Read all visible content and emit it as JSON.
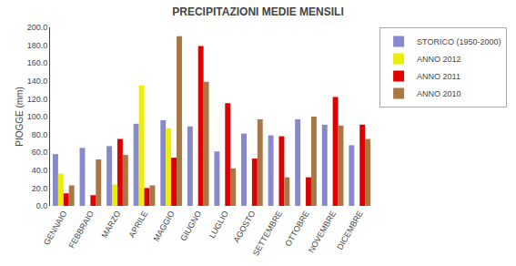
{
  "chart_data": {
    "type": "bar",
    "title": "PRECIPITAZIONI MEDIE MENSILI",
    "ylabel": "PIOGGE (mm)",
    "categories": [
      "GENNAIO",
      "FEBBRAIO",
      "MARZO",
      "APRILE",
      "MAGGIO",
      "GIUGNO",
      "LUGLIO",
      "AGOSTO",
      "SETTEMBRE",
      "OTTOBRE",
      "NOVEMBRE",
      "DICEMBRE"
    ],
    "series": [
      {
        "name": "STORICO (1950-2000)",
        "color": "#8888cc",
        "values": [
          58,
          65,
          67,
          92,
          96,
          89,
          61,
          81,
          79,
          97,
          91,
          68
        ]
      },
      {
        "name": "ANNO 2012",
        "color": "#eeee00",
        "values": [
          36,
          0,
          24,
          135,
          87,
          0,
          0,
          0,
          0,
          0,
          0,
          0
        ]
      },
      {
        "name": "ANNO 2011",
        "color": "#dd0000",
        "values": [
          14,
          12,
          75,
          20,
          54,
          179,
          115,
          53,
          78,
          32,
          122,
          91
        ]
      },
      {
        "name": "ANNO 2010",
        "color": "#aa7744",
        "values": [
          23,
          52,
          57,
          23,
          190,
          139,
          42,
          97,
          32,
          100,
          90,
          75
        ]
      }
    ],
    "ylim": [
      0,
      200
    ],
    "yticks": [
      {
        "value": 0,
        "label": "0.0"
      },
      {
        "value": 20,
        "label": "20.0"
      },
      {
        "value": 40,
        "label": "40.0"
      },
      {
        "value": 60,
        "label": "60.0"
      },
      {
        "value": 80,
        "label": "80.0"
      },
      {
        "value": 100,
        "label": "100.0"
      },
      {
        "value": 120,
        "label": "120.0"
      },
      {
        "value": 140,
        "label": "140.0"
      },
      {
        "value": 160,
        "label": "160.0"
      },
      {
        "value": 180,
        "label": "180.0"
      },
      {
        "value": 200,
        "label": "200.0"
      }
    ],
    "grid": false,
    "legend": "right"
  }
}
